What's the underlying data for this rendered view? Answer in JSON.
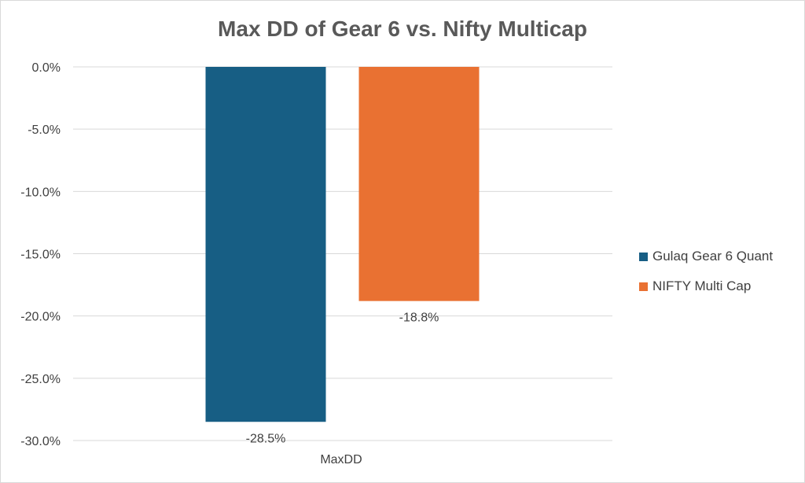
{
  "chart_data": {
    "type": "bar",
    "title": "Max DD of Gear 6 vs. Nifty Multicap",
    "categories": [
      "MaxDD"
    ],
    "series": [
      {
        "name": "Gulaq Gear 6 Quant",
        "values": [
          -28.5
        ],
        "color": "#175E84",
        "label": "-28.5%"
      },
      {
        "name": "NIFTY Multi Cap",
        "values": [
          -18.8
        ],
        "color": "#E97132",
        "label": "-18.8%"
      }
    ],
    "ylim": [
      -30,
      0
    ],
    "yticks": [
      "0.0%",
      "-5.0%",
      "-10.0%",
      "-15.0%",
      "-20.0%",
      "-25.0%",
      "-30.0%"
    ],
    "xlabel": "",
    "ylabel": "",
    "grid": true,
    "legend": "right"
  }
}
